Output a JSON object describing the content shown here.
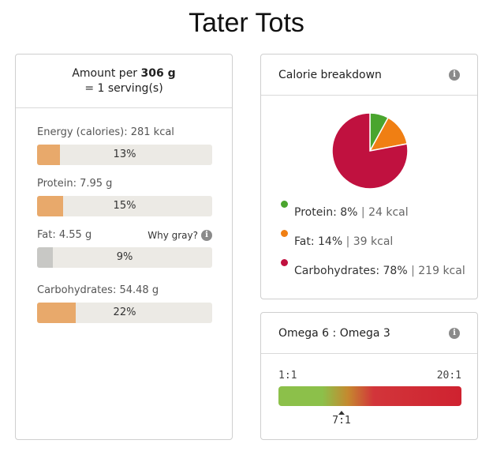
{
  "title": "Tater Tots",
  "amount": {
    "prefix": "Amount per",
    "weight": "306 g",
    "serving": "= 1 serving(s)"
  },
  "nutrients": [
    {
      "label": "Energy (calories):",
      "value": "281 kcal",
      "pct_label": "13%",
      "pct": 13,
      "bar": "orange"
    },
    {
      "label": "Protein:",
      "value": "7.95 g",
      "pct_label": "15%",
      "pct": 15,
      "bar": "orange"
    },
    {
      "label": "Fat:",
      "value": "4.55 g",
      "pct_label": "9%",
      "pct": 9,
      "bar": "gray"
    },
    {
      "label": "Carbohydrates:",
      "value": "54.48 g",
      "pct_label": "22%",
      "pct": 22,
      "bar": "orange"
    }
  ],
  "why_gray": "Why gray?",
  "calorie_breakdown": {
    "heading": "Calorie breakdown",
    "legend": [
      {
        "name": "Protein:",
        "pct": "8%",
        "kcal": "24 kcal",
        "color": "#4aa52e"
      },
      {
        "name": "Fat:",
        "pct": "14%",
        "kcal": "39 kcal",
        "color": "#f07f13"
      },
      {
        "name": "Carbohydrates:",
        "pct": "78%",
        "kcal": "219 kcal",
        "color": "#c0113f"
      }
    ]
  },
  "chart_data": {
    "type": "pie",
    "categories": [
      "Protein",
      "Fat",
      "Carbohydrates"
    ],
    "values": [
      8,
      14,
      78
    ],
    "colors": [
      "#4aa52e",
      "#f07f13",
      "#c0113f"
    ]
  },
  "omega": {
    "heading": "Omega 6 : Omega 3",
    "min_label": "1:1",
    "max_label": "20:1",
    "value": "7:1"
  },
  "colors": {
    "bar_orange": "#e8a96b",
    "bar_gray": "#c8c8c5",
    "bar_track": "#eceae5"
  },
  "icons": {
    "info": "info-icon"
  }
}
